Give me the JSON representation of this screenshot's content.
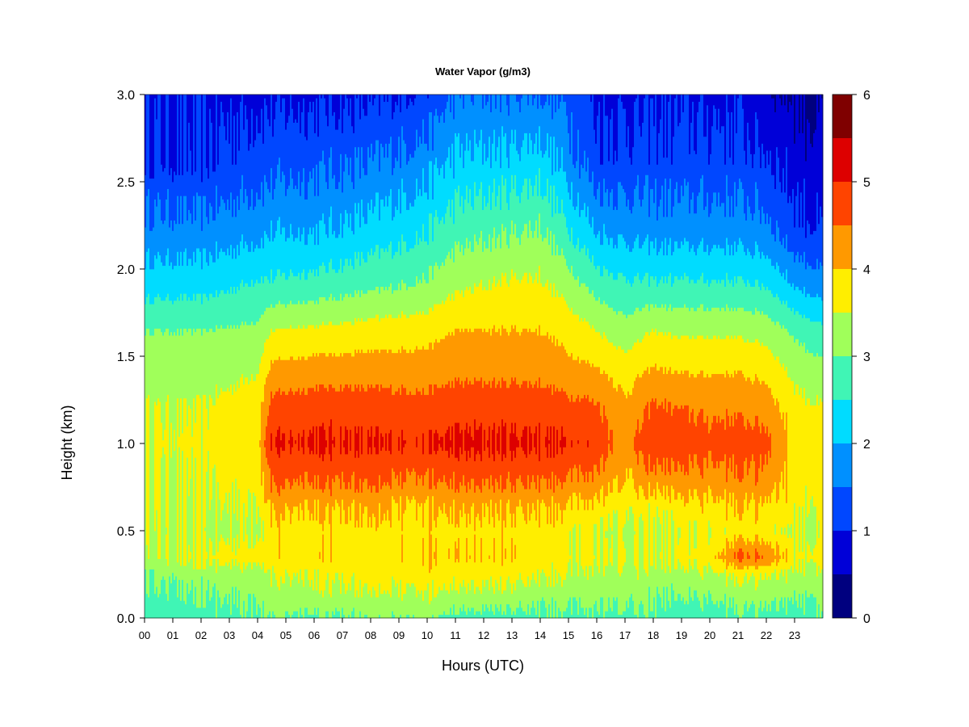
{
  "chart_data": {
    "type": "heatmap",
    "title": "Water Vapor (g/m3)",
    "xlabel": "Hours (UTC)",
    "ylabel": "Height (km)",
    "xlim": [
      0,
      24
    ],
    "ylim": [
      0,
      3.0
    ],
    "x_ticks": [
      "00",
      "01",
      "02",
      "03",
      "04",
      "05",
      "06",
      "07",
      "08",
      "09",
      "10",
      "11",
      "12",
      "13",
      "14",
      "15",
      "16",
      "17",
      "18",
      "19",
      "20",
      "21",
      "22",
      "23"
    ],
    "y_ticks": [
      "0.0",
      "0.5",
      "1.0",
      "1.5",
      "2.0",
      "2.5",
      "3.0"
    ],
    "colorbar": {
      "range": [
        0,
        6
      ],
      "ticks": [
        "0",
        "1",
        "2",
        "3",
        "4",
        "5",
        "6"
      ],
      "levels": [
        0,
        0.5,
        1,
        1.5,
        2,
        2.5,
        3,
        3.5,
        4,
        4.5,
        5,
        5.5,
        6
      ],
      "colors": [
        "#00007f",
        "#0000d8",
        "#0047ff",
        "#0090ff",
        "#00dcff",
        "#40f5b5",
        "#a0ff5a",
        "#ffee00",
        "#ff9900",
        "#ff4400",
        "#dd0000",
        "#7f0000"
      ]
    },
    "profile_heights_km": [
      0.0,
      0.1,
      0.25,
      0.35,
      0.5,
      0.65,
      0.8,
      1.0,
      1.2,
      1.4,
      1.65,
      1.9,
      2.2,
      2.6,
      3.0
    ],
    "profiles": [
      {
        "hour": 0,
        "values": [
          2.7,
          2.8,
          3.1,
          3.3,
          3.4,
          3.5,
          3.5,
          3.6,
          3.5,
          3.3,
          3.0,
          2.3,
          1.7,
          1.1,
          0.9
        ]
      },
      {
        "hour": 2,
        "values": [
          2.8,
          2.9,
          3.2,
          3.6,
          3.3,
          3.4,
          3.5,
          3.6,
          3.5,
          3.3,
          3.0,
          2.3,
          1.7,
          1.0,
          0.9
        ]
      },
      {
        "hour": 4,
        "values": [
          3.0,
          3.1,
          3.3,
          3.8,
          3.5,
          3.6,
          3.8,
          3.9,
          3.8,
          3.5,
          3.1,
          2.6,
          1.9,
          1.3,
          0.9
        ]
      },
      {
        "hour": 4.5,
        "values": [
          3.0,
          3.2,
          3.5,
          3.8,
          3.8,
          4.1,
          4.6,
          5.0,
          4.7,
          4.2,
          3.5,
          2.6,
          2.0,
          1.3,
          0.9
        ]
      },
      {
        "hour": 6,
        "values": [
          2.9,
          3.3,
          3.6,
          3.9,
          3.8,
          4.1,
          4.6,
          5.1,
          4.8,
          4.3,
          3.6,
          2.7,
          2.0,
          1.4,
          0.9
        ]
      },
      {
        "hour": 8,
        "values": [
          3.0,
          3.3,
          3.7,
          3.8,
          3.8,
          4.1,
          4.6,
          5.0,
          4.8,
          4.3,
          3.7,
          2.9,
          2.2,
          1.5,
          0.9
        ]
      },
      {
        "hour": 10,
        "values": [
          3.1,
          3.4,
          3.8,
          3.9,
          3.8,
          4.0,
          4.5,
          5.0,
          4.7,
          4.3,
          3.8,
          3.1,
          2.5,
          1.8,
          1.1
        ]
      },
      {
        "hour": 11,
        "values": [
          2.8,
          3.2,
          3.7,
          3.9,
          3.8,
          4.1,
          4.6,
          5.1,
          4.8,
          4.4,
          4.0,
          3.4,
          2.8,
          2.1,
          1.5
        ]
      },
      {
        "hour": 13,
        "values": [
          2.8,
          3.2,
          3.7,
          3.9,
          3.8,
          4.1,
          4.6,
          5.1,
          4.8,
          4.4,
          4.0,
          3.6,
          3.0,
          2.2,
          1.5
        ]
      },
      {
        "hour": 14,
        "values": [
          2.9,
          3.1,
          3.6,
          3.8,
          3.8,
          4.1,
          4.6,
          5.1,
          4.8,
          4.4,
          4.0,
          3.6,
          3.1,
          2.3,
          1.5
        ]
      },
      {
        "hour": 15,
        "values": [
          2.9,
          3.1,
          3.5,
          3.7,
          3.7,
          4.0,
          4.5,
          5.0,
          4.7,
          4.2,
          3.8,
          3.3,
          2.6,
          1.8,
          1.4
        ]
      },
      {
        "hour": 16,
        "values": [
          2.9,
          3.1,
          3.4,
          3.6,
          3.5,
          3.9,
          4.4,
          4.9,
          4.6,
          4.1,
          3.5,
          2.8,
          2.0,
          1.2,
          0.9
        ]
      },
      {
        "hour": 17,
        "values": [
          2.9,
          3.1,
          3.4,
          3.5,
          3.4,
          3.7,
          4.0,
          4.3,
          4.1,
          3.8,
          3.2,
          2.6,
          1.9,
          1.2,
          0.9
        ]
      },
      {
        "hour": 18,
        "values": [
          2.9,
          3.0,
          3.3,
          3.5,
          3.4,
          3.7,
          4.3,
          4.9,
          4.6,
          4.1,
          3.5,
          2.6,
          1.8,
          1.2,
          0.9
        ]
      },
      {
        "hour": 19,
        "values": [
          2.7,
          2.9,
          3.3,
          3.6,
          3.5,
          3.8,
          4.3,
          4.8,
          4.5,
          4.0,
          3.4,
          2.6,
          1.8,
          1.2,
          0.9
        ]
      },
      {
        "hour": 20,
        "values": [
          2.8,
          3.0,
          3.4,
          3.8,
          3.6,
          3.9,
          4.3,
          4.7,
          4.4,
          4.0,
          3.4,
          2.6,
          1.8,
          1.2,
          0.9
        ]
      },
      {
        "hour": 21,
        "values": [
          2.9,
          3.1,
          3.6,
          4.6,
          3.7,
          4.0,
          4.4,
          4.8,
          4.4,
          4.0,
          3.4,
          2.6,
          1.8,
          1.2,
          0.9
        ]
      },
      {
        "hour": 22,
        "values": [
          2.9,
          3.1,
          3.6,
          4.5,
          3.7,
          4.0,
          4.4,
          4.7,
          4.3,
          3.9,
          3.3,
          2.5,
          1.7,
          1.1,
          0.6
        ]
      },
      {
        "hour": 23,
        "values": [
          2.8,
          3.0,
          3.4,
          3.7,
          3.5,
          3.7,
          3.8,
          3.9,
          3.7,
          3.4,
          2.9,
          2.0,
          1.2,
          0.8,
          0.5
        ]
      },
      {
        "hour": 24,
        "values": [
          2.9,
          3.0,
          3.3,
          3.6,
          3.4,
          3.5,
          3.6,
          3.7,
          3.5,
          3.2,
          2.6,
          1.7,
          1.0,
          0.6,
          0.4
        ]
      }
    ]
  }
}
